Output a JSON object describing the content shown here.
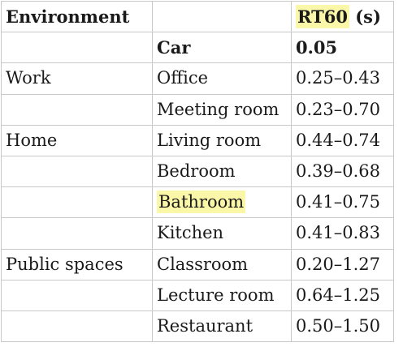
{
  "header": {
    "environment": "Environment",
    "room": "",
    "rt60_term": "RT60",
    "rt60_unit": " (s)"
  },
  "rows": [
    {
      "environment": "",
      "room": "Car",
      "rt60": "0.05"
    },
    {
      "environment": "Work",
      "room": "Office",
      "rt60": "0.25–0.43"
    },
    {
      "environment": "",
      "room": "Meeting room",
      "rt60": "0.23–0.70"
    },
    {
      "environment": "Home",
      "room": "Living room",
      "rt60": "0.44–0.74"
    },
    {
      "environment": "",
      "room": "Bedroom",
      "rt60": "0.39–0.68"
    },
    {
      "environment": "",
      "room": "Bathroom",
      "rt60": "0.41–0.75"
    },
    {
      "environment": "",
      "room": "Kitchen",
      "rt60": "0.41–0.83"
    },
    {
      "environment": "Public spaces",
      "room": "Classroom",
      "rt60": "0.20–1.27"
    },
    {
      "environment": "",
      "room": "Lecture room",
      "rt60": "0.64–1.25"
    },
    {
      "environment": "",
      "room": "Restaurant",
      "rt60": "0.50–1.50"
    }
  ],
  "highlight_color": "#fbf7a8"
}
